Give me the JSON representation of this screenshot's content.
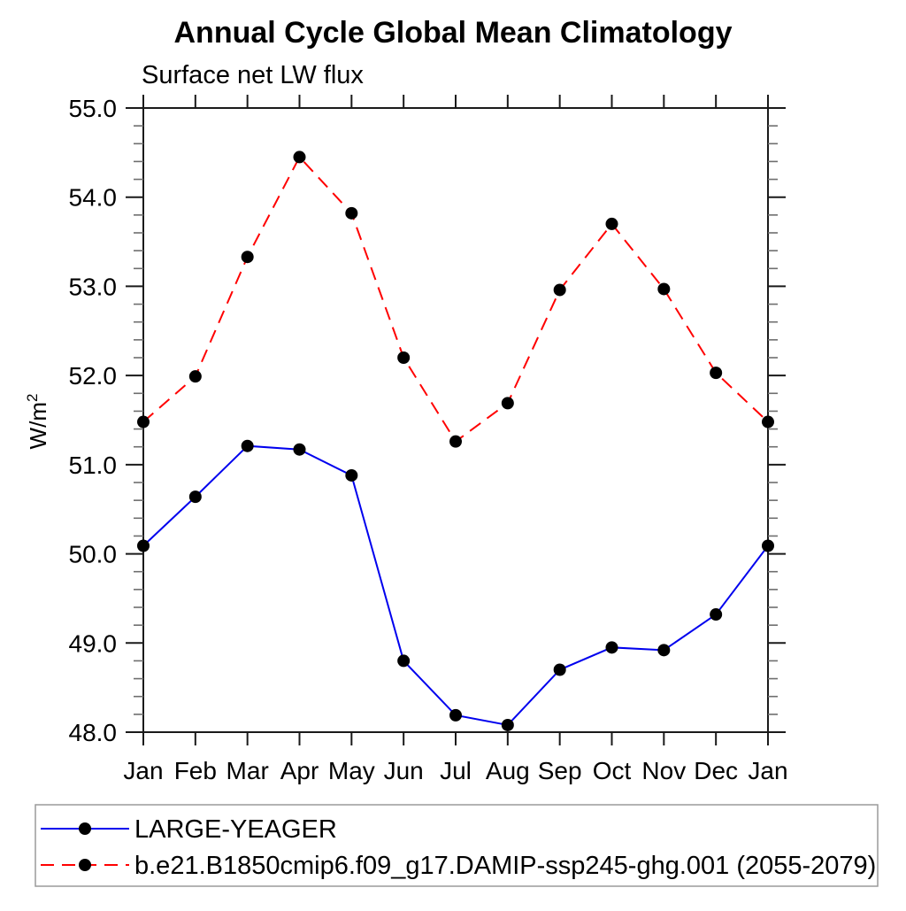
{
  "title": "Annual Cycle Global Mean Climatology",
  "subtitle": "Surface net LW flux",
  "ylabel_base": "W/m",
  "ylabel_sup": "2",
  "chart_data": {
    "type": "line",
    "categories": [
      "Jan",
      "Feb",
      "Mar",
      "Apr",
      "May",
      "Jun",
      "Jul",
      "Aug",
      "Sep",
      "Oct",
      "Nov",
      "Dec",
      "Jan"
    ],
    "series": [
      {
        "name": "LARGE-YEAGER",
        "color": "#0000ee",
        "line_style": "solid",
        "values": [
          50.09,
          50.64,
          51.21,
          51.17,
          50.88,
          48.8,
          48.19,
          48.08,
          48.7,
          48.95,
          48.92,
          49.32,
          50.09
        ]
      },
      {
        "name": "b.e21.B1850cmip6.f09_g17.DAMIP-ssp245-ghg.001 (2055-2079)",
        "color": "#ff0000",
        "line_style": "dashed",
        "values": [
          51.48,
          51.99,
          53.33,
          54.45,
          53.82,
          52.2,
          51.26,
          51.69,
          52.96,
          53.7,
          52.97,
          52.03,
          51.48
        ]
      }
    ],
    "marker": {
      "shape": "circle",
      "color": "#000000",
      "radius": 7
    },
    "ylim": [
      48.0,
      55.0
    ],
    "y_major_step": 1.0,
    "y_minor_step": 0.2,
    "y_tick_labels": [
      "48.0",
      "49.0",
      "50.0",
      "51.0",
      "52.0",
      "53.0",
      "54.0",
      "55.0"
    ],
    "grid": false,
    "legend_position": "bottom"
  }
}
